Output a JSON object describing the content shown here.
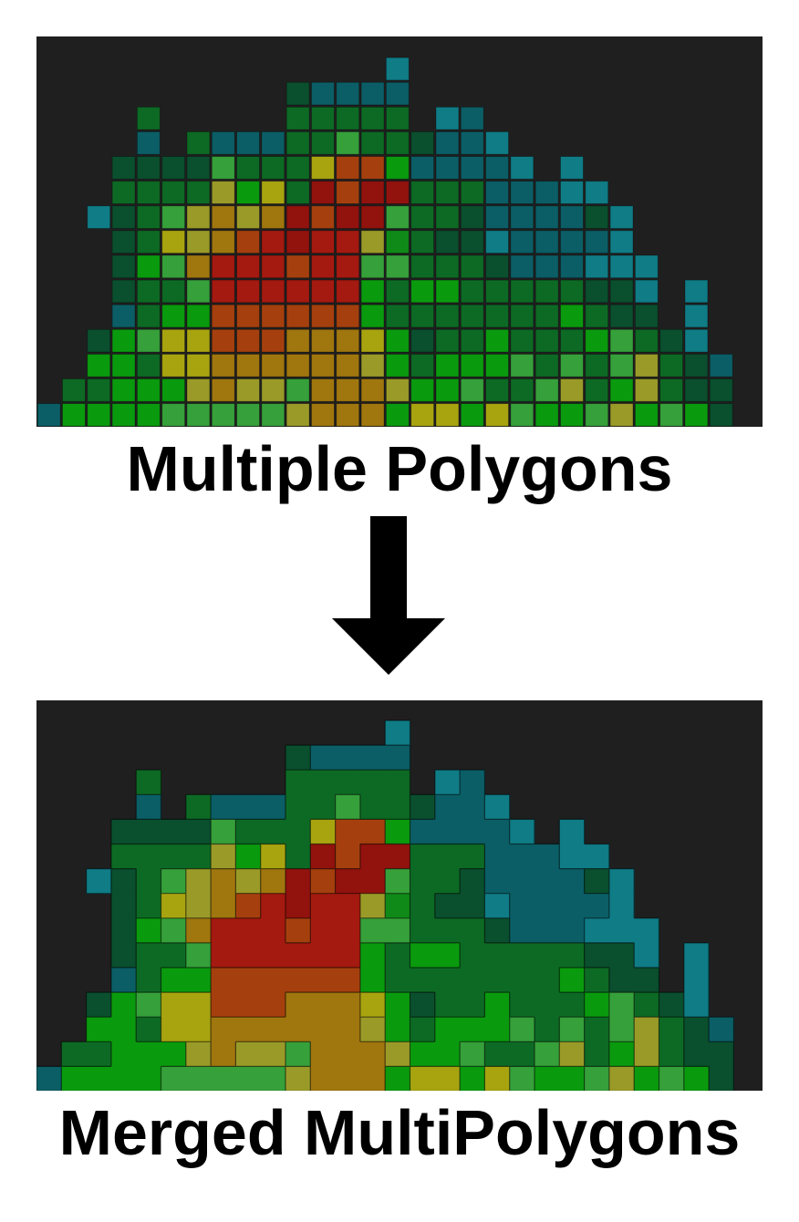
{
  "top_label": "Multiple Polygons",
  "bottom_label": "Merged MultiPolygons",
  "colors": {
    "background": "#1f1f1f",
    "page": "#ffffff",
    "arrow": "#000000",
    "palette": {
      "t": "#0f7c86",
      "T": "#0b5e66",
      "d": "#0a4f2e",
      "D": "#0d6a24",
      "g": "#0f8a18",
      "G": "#0a9a0e",
      "l": "#36a03a",
      "y": "#9a9a28",
      "Y": "#a8a410",
      "o": "#a0760e",
      "O": "#a86a0c",
      "r": "#a41a10",
      "R": "#92120e",
      "e": "#a5400e"
    }
  },
  "grid": {
    "cols": 28,
    "rows": 15,
    "rows_data": [
      "..............t.............",
      "..........dTTTT.............",
      "....D.....DDDDD.tT..........",
      "....T.DTTTDDlDDdTTt.........",
      "...ddddlDDDYeeGTTTTt.t......",
      "...DDDDyGYDReRRDDDTTTtt.....",
      "..tdDlyoyoReRRlDDdTTTTdt....",
      "...dDYyoerRrrygDddtTTTTt....",
      "...dGlorrrerrllDDDdTTTttt...",
      "...dDDlrrrrrrGDGGDDDDDddt.t.",
      "...TDGGeeeeeeGDDDDDDDGDdd.t.",
      "..dGlYYeeeoooYGdDDGDDDGlDdt.",
      "..GGDYYooooooyGDGGGlDlDlyDdT",
      ".DDGGGyoyyloooyGGlDDlyDGyDdd",
      "TGGGGlllllyoooGYYGYlGGlyGlGd"
    ]
  }
}
